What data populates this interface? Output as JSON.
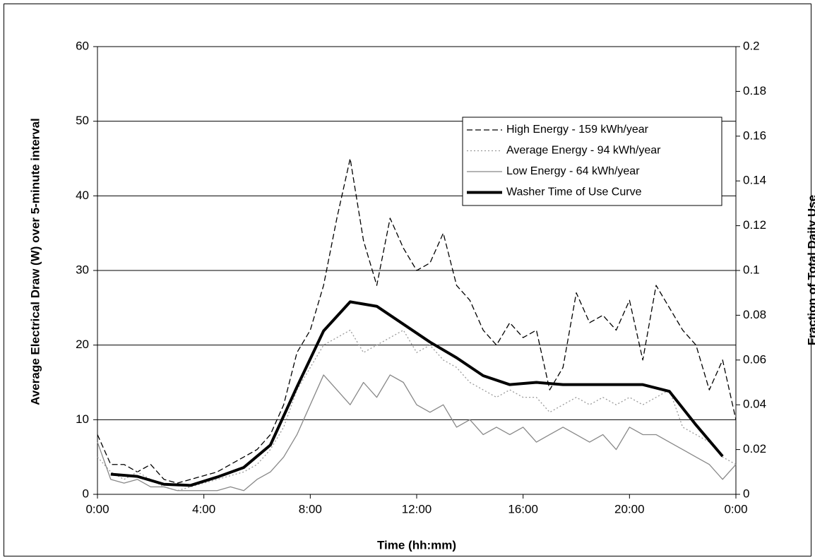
{
  "chart_data": {
    "type": "line",
    "x_label": "Time (hh:mm)",
    "y_label": "Average Electrical Draw (W) over 5-minute interval",
    "y2_label": "Fraction of Total Daily Use",
    "x": [
      0,
      0.5,
      1,
      1.5,
      2,
      2.5,
      3,
      3.5,
      4,
      4.5,
      5,
      5.5,
      6,
      6.5,
      7,
      7.5,
      8,
      8.5,
      9,
      9.5,
      10,
      10.5,
      11,
      11.5,
      12,
      12.5,
      13,
      13.5,
      14,
      14.5,
      15,
      15.5,
      16,
      16.5,
      17,
      17.5,
      18,
      18.5,
      19,
      19.5,
      20,
      20.5,
      21,
      21.5,
      22,
      22.5,
      23,
      23.5,
      24
    ],
    "xlim": [
      0,
      24
    ],
    "xticks": [
      {
        "value": 0,
        "label": "0:00"
      },
      {
        "value": 4,
        "label": "4:00"
      },
      {
        "value": 8,
        "label": "8:00"
      },
      {
        "value": 12,
        "label": "12:00"
      },
      {
        "value": 16,
        "label": "16:00"
      },
      {
        "value": 20,
        "label": "20:00"
      },
      {
        "value": 24,
        "label": "0:00"
      }
    ],
    "ylim": [
      0,
      60
    ],
    "yticks": [
      0,
      10,
      20,
      30,
      40,
      50,
      60
    ],
    "y2lim": [
      0,
      0.2
    ],
    "y2ticks": [
      0,
      0.02,
      0.04,
      0.06,
      0.08,
      0.1,
      0.12,
      0.14,
      0.16,
      0.18,
      0.2
    ],
    "grid": true,
    "series": [
      {
        "name": "High Energy - 159 kWh/year",
        "color": "#000000",
        "line_style": "dashed",
        "values": [
          8,
          4,
          4,
          3,
          4,
          2,
          1.5,
          2,
          2.5,
          3,
          4,
          5,
          6,
          8,
          12,
          19,
          22,
          28,
          37,
          45,
          34,
          28,
          37,
          33,
          30,
          31,
          35,
          28,
          26,
          22,
          20,
          23,
          21,
          22,
          14,
          17,
          27,
          23,
          24,
          22,
          26,
          18,
          28,
          25,
          22,
          20,
          14,
          18,
          10
        ]
      },
      {
        "name": "Average Energy - 94 kWh/year",
        "color": "#999999",
        "line_style": "dotted",
        "values": [
          5,
          3,
          2,
          3,
          2,
          1,
          0.5,
          1,
          1.5,
          2,
          2.5,
          3,
          4,
          6,
          9,
          14,
          17,
          20,
          21,
          22,
          19,
          20,
          21,
          22,
          19,
          20,
          18,
          17,
          15,
          14,
          13,
          14,
          13,
          13,
          11,
          12,
          13,
          12,
          13,
          12,
          13,
          12,
          13,
          14,
          9,
          8,
          7,
          5,
          4
        ]
      },
      {
        "name": "Low Energy - 64 kWh/year",
        "color": "#888888",
        "line_style": "solid",
        "values": [
          7,
          2,
          1.5,
          2,
          1,
          1,
          0.5,
          0.5,
          0.5,
          0.5,
          1,
          0.5,
          2,
          3,
          5,
          8,
          12,
          16,
          14,
          12,
          15,
          13,
          16,
          15,
          12,
          11,
          12,
          9,
          10,
          8,
          9,
          8,
          9,
          7,
          8,
          9,
          8,
          7,
          8,
          6,
          9,
          8,
          8,
          7,
          6,
          5,
          4,
          2,
          4
        ]
      },
      {
        "name": "Washer Time of Use Curve",
        "color": "#000000",
        "line_style": "bold",
        "axis": "y2",
        "x": [
          0.5,
          1.5,
          2.5,
          3.5,
          4.5,
          5.5,
          6.5,
          7.5,
          8.5,
          9.5,
          10.5,
          11.5,
          12.5,
          13.5,
          14.5,
          15.5,
          16.5,
          17.5,
          18.5,
          19.5,
          20.5,
          21.5,
          22.5,
          23.5
        ],
        "values": [
          0.009,
          0.008,
          0.0045,
          0.004,
          0.0077,
          0.012,
          0.022,
          0.048,
          0.073,
          0.086,
          0.084,
          0.076,
          0.068,
          0.061,
          0.053,
          0.049,
          0.05,
          0.049,
          0.049,
          0.049,
          0.049,
          0.046,
          0.031,
          0.017
        ]
      }
    ]
  }
}
